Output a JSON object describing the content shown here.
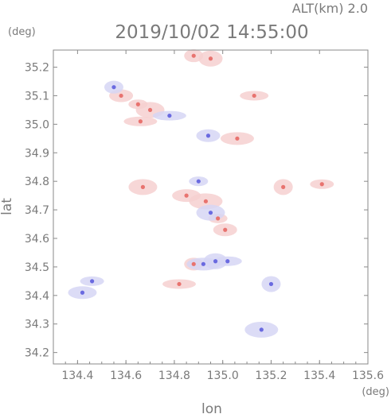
{
  "chart_data": {
    "type": "scatter",
    "title": "2019/10/02 14:55:00",
    "subtitle": "ALT(km) 2.0",
    "xlabel": "lon",
    "ylabel": "lat",
    "x_unit": "(deg)",
    "y_unit": "(deg)",
    "xlim": [
      134.3,
      135.6
    ],
    "ylim": [
      34.16,
      35.26
    ],
    "xticks": [
      134.4,
      134.6,
      134.8,
      135.0,
      135.2,
      135.4,
      135.6
    ],
    "yticks": [
      34.2,
      34.3,
      34.4,
      34.5,
      34.6,
      34.7,
      34.8,
      34.9,
      35.0,
      35.1,
      35.2
    ],
    "xtick_labels": [
      "134.4",
      "134.6",
      "134.8",
      "135.0",
      "135.2",
      "135.4",
      "135.6"
    ],
    "ytick_labels": [
      "34.2",
      "34.3",
      "34.4",
      "34.5",
      "34.6",
      "34.7",
      "34.8",
      "34.9",
      "35.0",
      "35.1",
      "35.2"
    ],
    "grid": false,
    "colors": {
      "positive": "#e8736f",
      "negative": "#6a6ae0",
      "positive_light": "#f6d0d0",
      "negative_light": "#d6d6f4"
    },
    "series": [
      {
        "values": [
          {
            "x": 134.65,
            "y": 35.07
          },
          {
            "x": 134.58,
            "y": 35.1
          },
          {
            "x": 134.7,
            "y": 35.05
          },
          {
            "x": 134.66,
            "y": 35.01
          },
          {
            "x": 134.88,
            "y": 35.24
          },
          {
            "x": 134.95,
            "y": 35.23
          },
          {
            "x": 135.13,
            "y": 35.1
          },
          {
            "x": 135.06,
            "y": 34.95
          },
          {
            "x": 135.25,
            "y": 34.78
          },
          {
            "x": 135.41,
            "y": 34.79
          },
          {
            "x": 134.85,
            "y": 34.75
          },
          {
            "x": 134.93,
            "y": 34.73
          },
          {
            "x": 134.98,
            "y": 34.67
          },
          {
            "x": 135.01,
            "y": 34.63
          },
          {
            "x": 134.67,
            "y": 34.78
          },
          {
            "x": 134.82,
            "y": 34.44
          },
          {
            "x": 134.88,
            "y": 34.51
          }
        ]
      },
      {
        "values": [
          {
            "x": 134.97,
            "y": 34.52
          },
          {
            "x": 135.02,
            "y": 34.52
          },
          {
            "x": 134.92,
            "y": 34.51
          },
          {
            "x": 135.2,
            "y": 34.44
          },
          {
            "x": 134.46,
            "y": 34.45
          },
          {
            "x": 134.42,
            "y": 34.41
          },
          {
            "x": 135.16,
            "y": 34.28
          },
          {
            "x": 134.9,
            "y": 34.8
          },
          {
            "x": 134.94,
            "y": 34.96
          },
          {
            "x": 134.95,
            "y": 34.69
          },
          {
            "x": 134.78,
            "y": 35.03
          },
          {
            "x": 134.55,
            "y": 35.13
          }
        ]
      }
    ]
  }
}
